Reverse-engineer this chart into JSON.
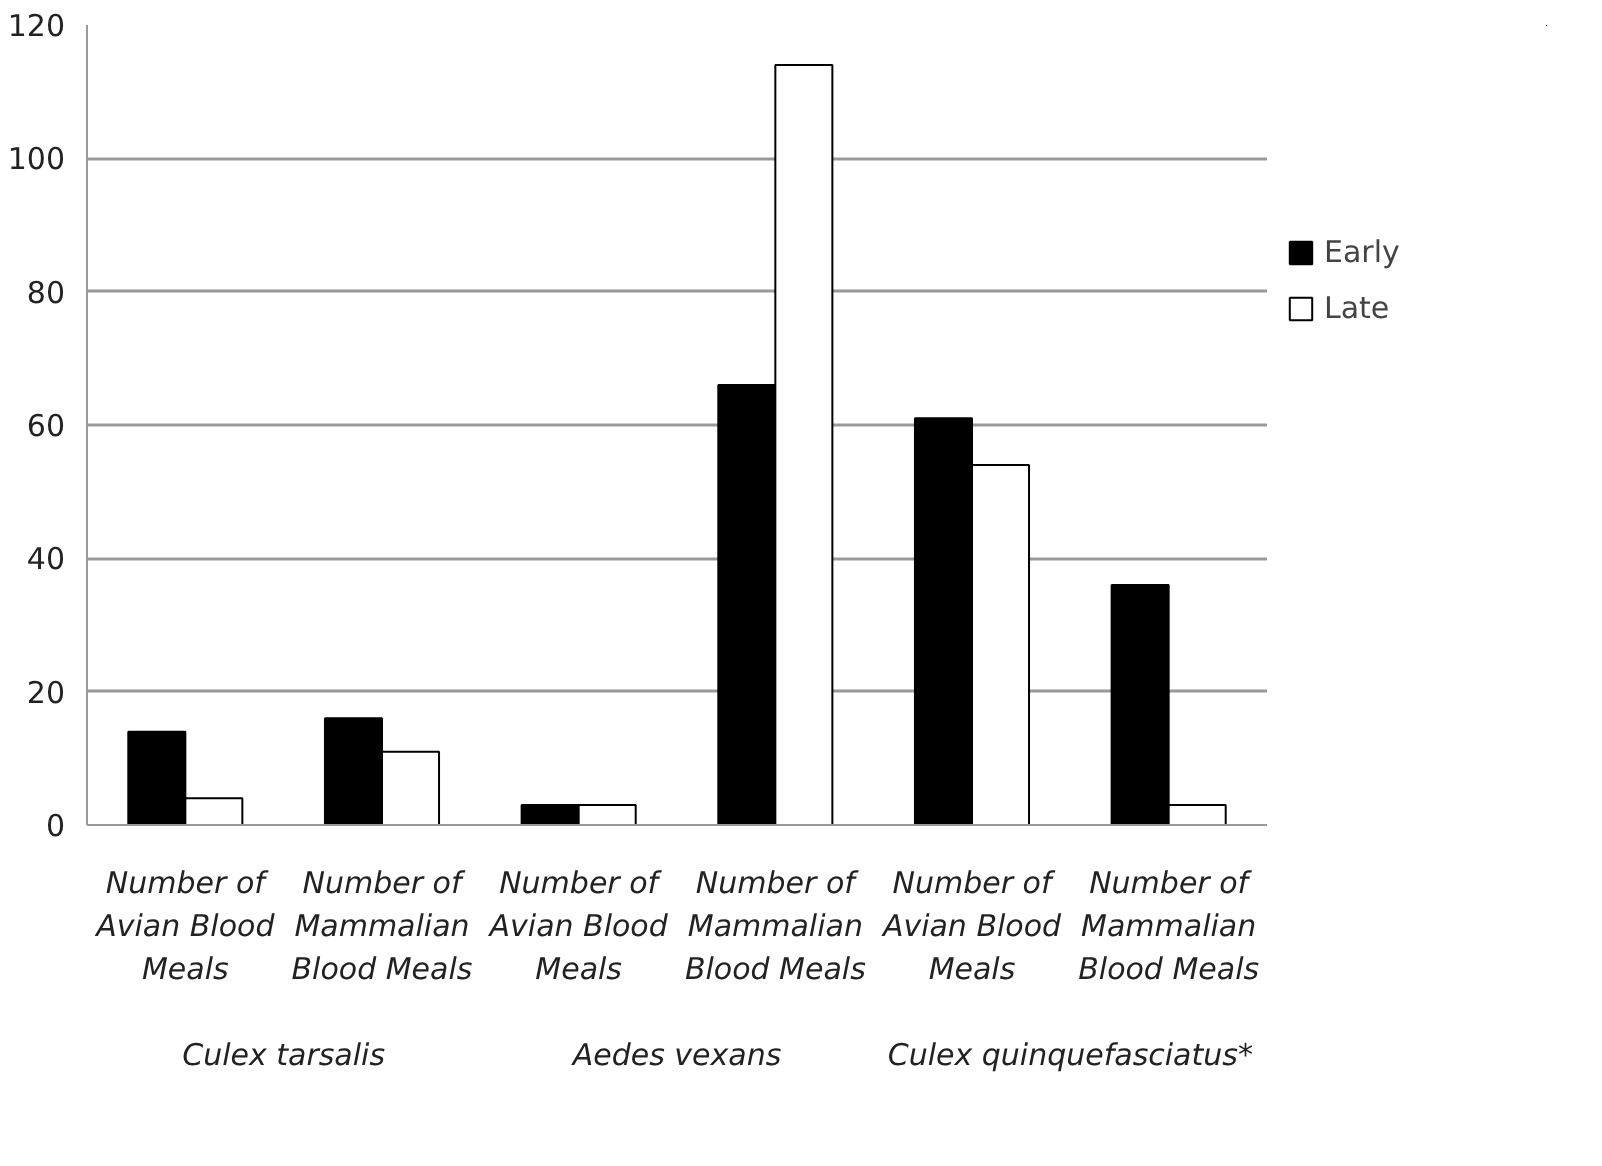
{
  "chart_data": {
    "type": "bar",
    "categories": [
      "Number of Avian Blood Meals",
      "Number of Mammalian Blood Meals",
      "Number of Avian Blood Meals",
      "Number of Mammalian Blood Meals",
      "Number of Avian Blood Meals",
      "Number of Mammalian Blood Meals"
    ],
    "series": [
      {
        "name": "Early",
        "color": "#000000",
        "values": [
          14,
          16,
          3,
          66,
          61,
          36
        ]
      },
      {
        "name": "Late",
        "color": "#ffffff",
        "values": [
          4,
          11,
          3,
          114,
          54,
          3
        ]
      }
    ],
    "annotations": [
      "Culex tarsalis",
      "Aedes vexans",
      "Culex quinquefasciatus*"
    ],
    "ylim": [
      0,
      120
    ],
    "yticks": [
      0,
      20,
      40,
      60,
      80,
      100,
      120
    ],
    "grid": "y",
    "legend": "right"
  }
}
